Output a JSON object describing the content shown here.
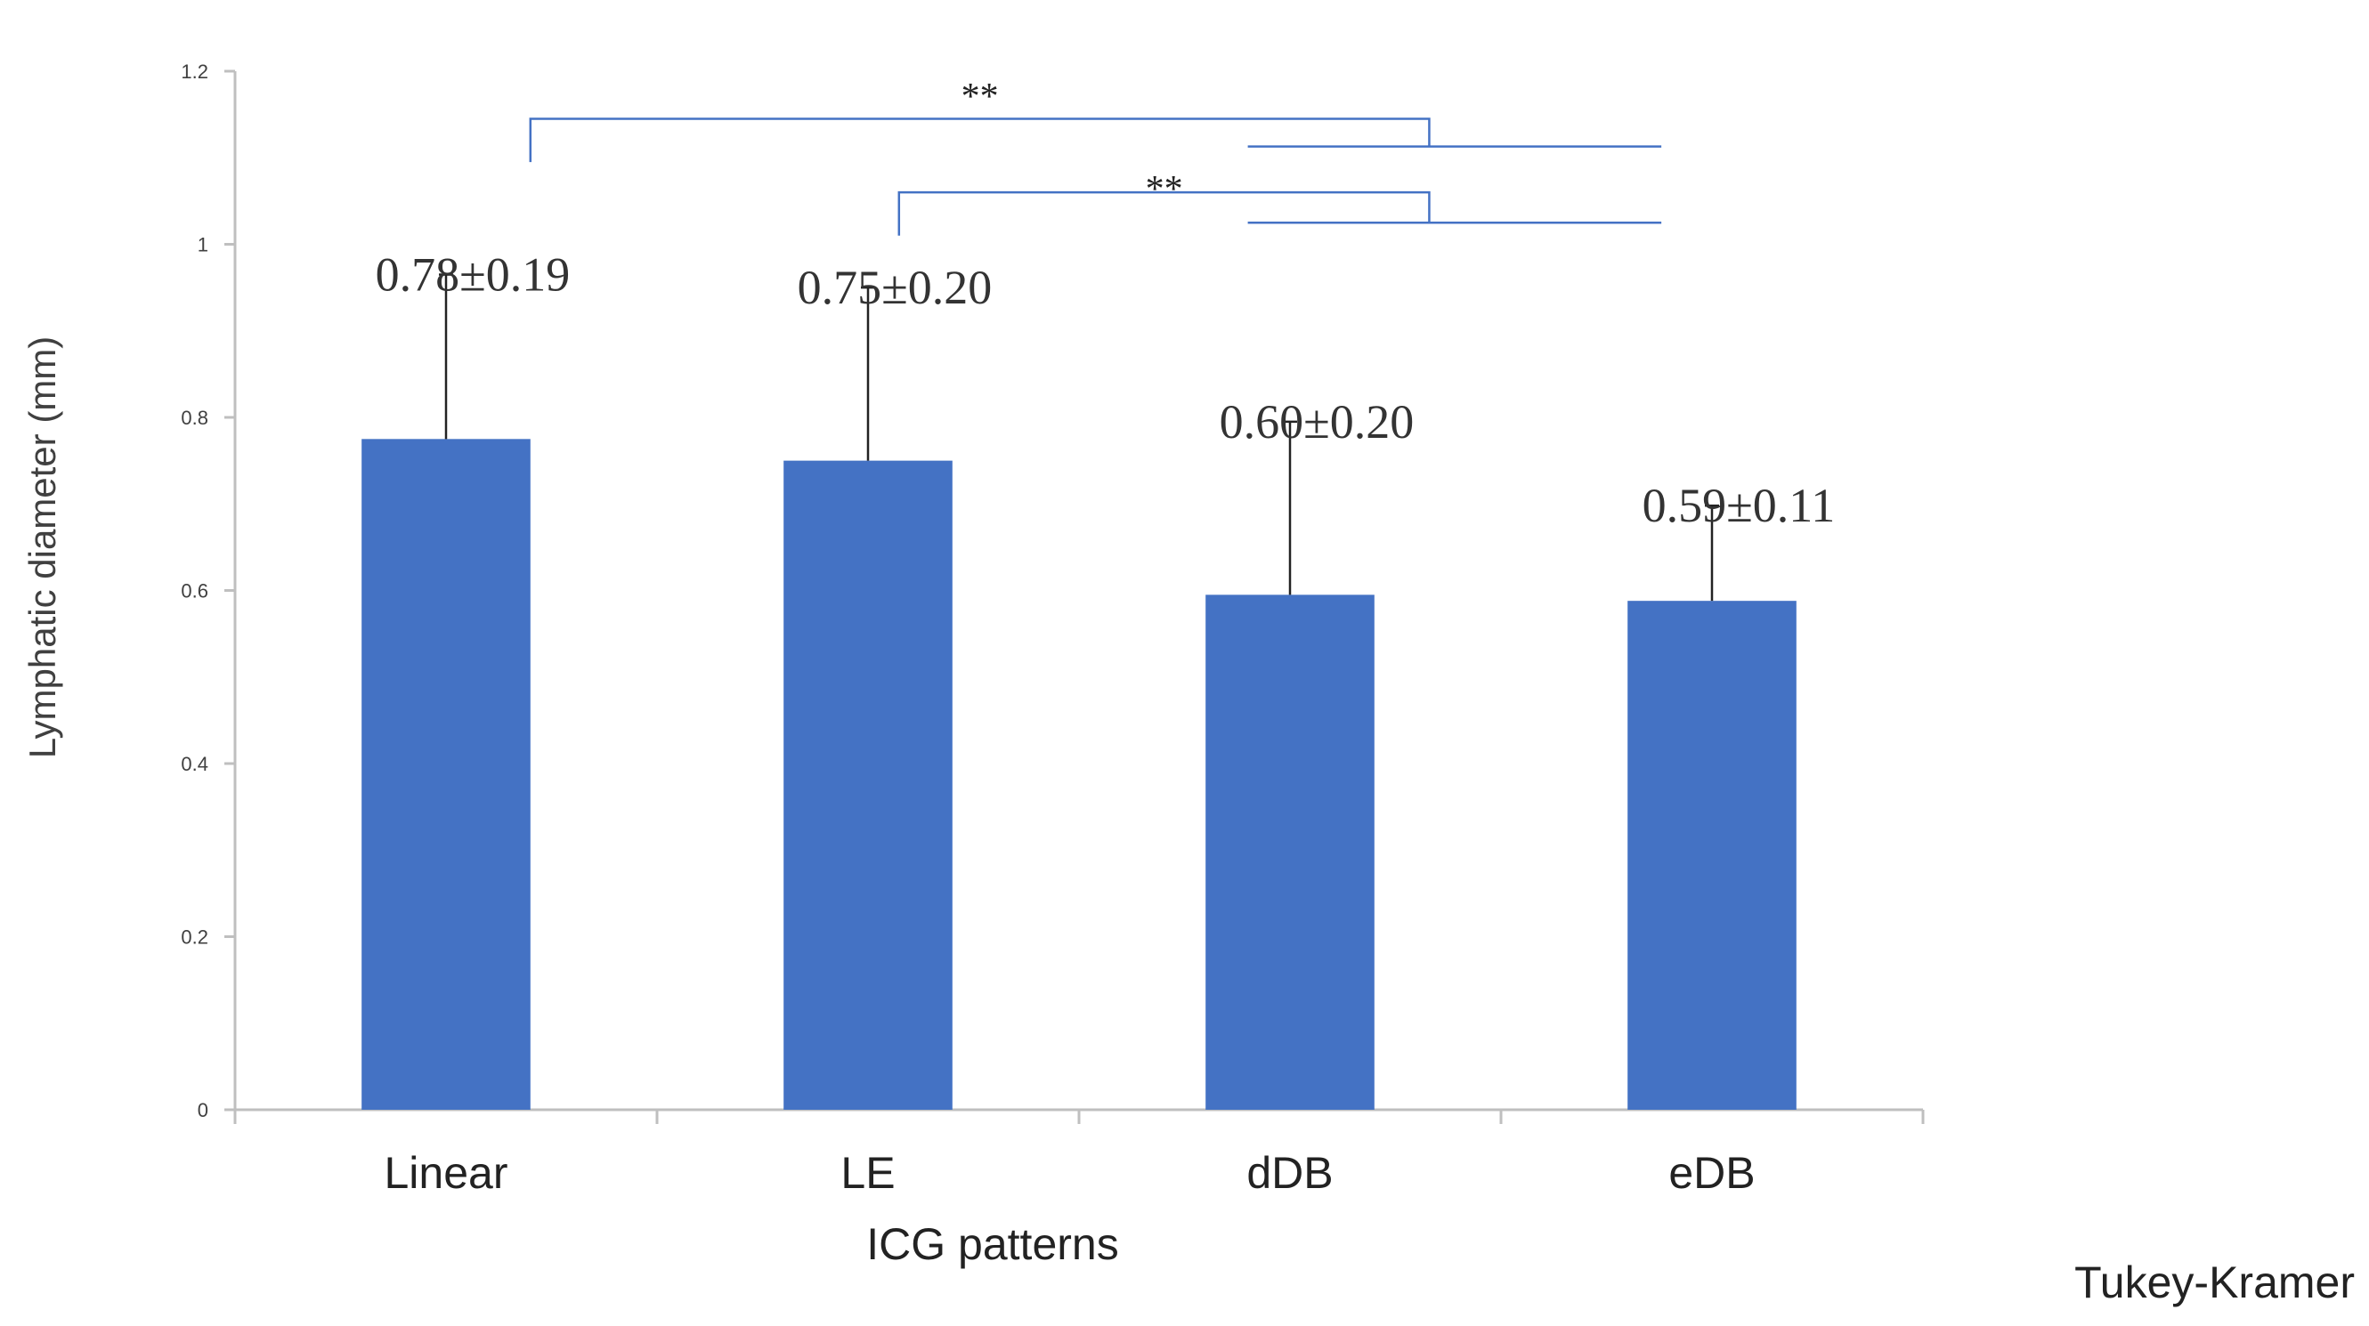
{
  "chart_data": {
    "type": "bar",
    "title": "",
    "xlabel": "ICG patterns",
    "ylabel": "Lymphatic diameter (mm)",
    "ylim": [
      0,
      1.2
    ],
    "yticks": [
      "0",
      "0.2",
      "0.4",
      "0.6",
      "0.8",
      "1",
      "1.2"
    ],
    "categories": [
      "Linear",
      "LE",
      "dDB",
      "eDB"
    ],
    "values": [
      0.775,
      0.75,
      0.595,
      0.588
    ],
    "errors": [
      0.19,
      0.2,
      0.2,
      0.11
    ],
    "data_labels": [
      "0.78±0.19",
      "0.75±0.20",
      "0.60±0.20",
      "0.59±0.11"
    ],
    "bar_color": "#4472c4",
    "significance": [
      {
        "from": "Linear",
        "to": "dDB/eDB",
        "label": "**"
      },
      {
        "from": "LE",
        "to": "dDB/eDB",
        "label": "**"
      }
    ],
    "note": "Tukey-Kramer",
    "grid": false
  }
}
